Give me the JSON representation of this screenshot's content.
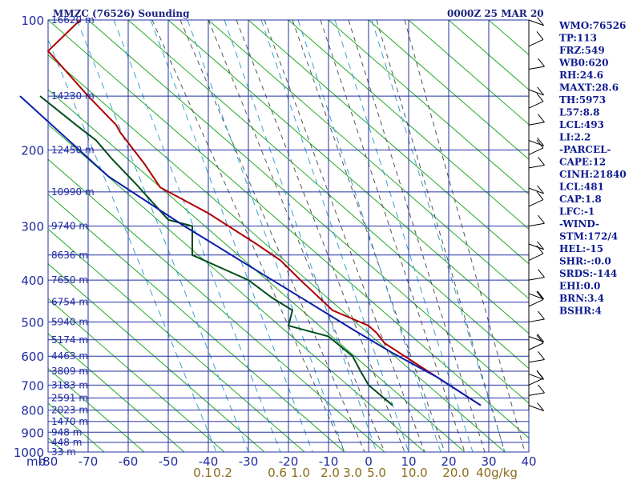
{
  "chart_data": {
    "type": "line",
    "title": "MMZC (76526) Sounding",
    "time_label": "0000Z 25 MAR 20",
    "x_unit_label": "mb",
    "y_ticks": [
      100,
      200,
      300,
      400,
      500,
      600,
      700,
      800,
      900,
      1000
    ],
    "x_ticks": [
      "-80",
      "-70",
      "-60",
      "-50",
      "-40",
      "-30",
      "-20",
      "-10",
      "0",
      "10",
      "20",
      "30",
      "40"
    ],
    "xlim": [
      -80,
      40
    ],
    "ylim": [
      100,
      1000
    ],
    "height_labels": [
      {
        "p": 100,
        "text": "16620 m"
      },
      {
        "p": 150,
        "text": "14230 m"
      },
      {
        "p": 200,
        "text": "12450 m"
      },
      {
        "p": 250,
        "text": "10990 m"
      },
      {
        "p": 300,
        "text": "9740 m"
      },
      {
        "p": 350,
        "text": "8636 m"
      },
      {
        "p": 400,
        "text": "7650 m"
      },
      {
        "p": 450,
        "text": "6754 m"
      },
      {
        "p": 500,
        "text": "5940 m"
      },
      {
        "p": 550,
        "text": "5174 m"
      },
      {
        "p": 600,
        "text": "4463 m"
      },
      {
        "p": 650,
        "text": "3809 m"
      },
      {
        "p": 700,
        "text": "3183 m"
      },
      {
        "p": 750,
        "text": "2591 m"
      },
      {
        "p": 800,
        "text": "2023 m"
      },
      {
        "p": 850,
        "text": "1470 m"
      },
      {
        "p": 900,
        "text": "948 m"
      },
      {
        "p": 950,
        "text": "448 m"
      },
      {
        "p": 1000,
        "text": "33 m"
      }
    ],
    "mixing_ratio_labels": [
      "0.1",
      "0.2",
      "0.6",
      "1.0",
      "2.0",
      "3.0",
      "5.0",
      "10.0",
      "20.0",
      "40g/kg"
    ],
    "series": [
      {
        "name": "",
        "color": "#b00000",
        "points": [
          [
            -72,
            100
          ],
          [
            -80,
            118
          ],
          [
            -70,
            150
          ],
          [
            -63,
            175
          ],
          [
            -62,
            182
          ],
          [
            -56,
            215
          ],
          [
            -52,
            244
          ],
          [
            -40,
            280
          ],
          [
            -28,
            330
          ],
          [
            -22,
            360
          ],
          [
            -17,
            400
          ],
          [
            -9,
            470
          ],
          [
            0,
            510
          ],
          [
            2,
            530
          ],
          [
            4,
            560
          ],
          [
            28,
            780
          ]
        ]
      },
      {
        "name": "",
        "color": "#004d1a",
        "points": [
          [
            -82,
            150
          ],
          [
            -73,
            175
          ],
          [
            -68,
            190
          ],
          [
            -64,
            210
          ],
          [
            -58,
            240
          ],
          [
            -50,
            290
          ],
          [
            -44,
            300
          ],
          [
            -44,
            350
          ],
          [
            -30,
            400
          ],
          [
            -24,
            440
          ],
          [
            -19,
            470
          ],
          [
            -20,
            510
          ],
          [
            -10,
            540
          ],
          [
            -4,
            600
          ],
          [
            -2,
            650
          ],
          [
            0,
            700
          ],
          [
            6,
            780
          ]
        ]
      },
      {
        "name": "",
        "color": "#0a1ea8",
        "points": [
          [
            -87,
            150
          ],
          [
            -65,
            230
          ],
          [
            -46,
            300
          ],
          [
            -30,
            370
          ],
          [
            -15,
            450
          ],
          [
            -4,
            520
          ],
          [
            6,
            590
          ],
          [
            17,
            670
          ],
          [
            28,
            780
          ]
        ]
      }
    ],
    "wind_barbs_pressures": [
      100,
      115,
      130,
      145,
      160,
      175,
      190,
      205,
      220,
      245,
      270,
      300,
      330,
      360,
      400,
      430,
      460,
      500,
      540,
      580,
      620,
      660,
      700,
      740,
      780
    ],
    "indices": [
      "WMO:76526",
      "TP:113",
      "FRZ:549",
      "WB0:620",
      "RH:24.6",
      "MAXT:28.6",
      "TH:5973",
      "L57:8.8",
      "LCL:493",
      "LI:2.2",
      "-PARCEL-",
      "CAPE:12",
      "CINH:21840",
      "LCL:481",
      "CAP:1.8",
      "LFC:-1",
      "-WIND-",
      "STM:172/4",
      "HEL:-15",
      "SHR:-:0.0",
      "SRDS:-144",
      "EHI:0.0",
      "BRN:3.4",
      "BSHR:4"
    ],
    "colors": {
      "isobar": "#2230a0",
      "isotherm": "#2230a0",
      "dry_adiabat": "#22aa22",
      "moist_adiabat": "#555555",
      "mixing_ratio": "#3aa0d0"
    }
  }
}
